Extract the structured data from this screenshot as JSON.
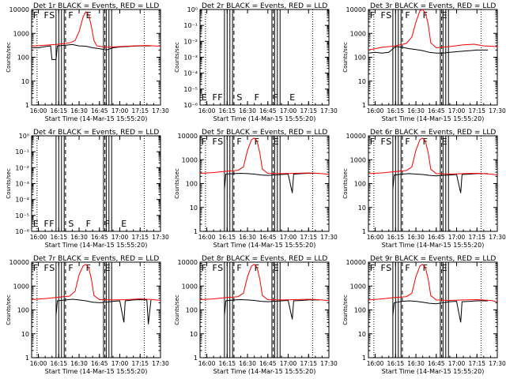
{
  "figure": {
    "background": "#ffffff",
    "axis_color": "#000000",
    "events_color": "#000000",
    "lld_color": "#ff0000"
  },
  "chart_data": [
    {
      "type": "line",
      "title": "Det 1r  BLACK = Events, RED = LLD",
      "xlabel": "Start Time (14-Mar-15 15:55:20)",
      "ylabel": "Counts/sec",
      "y_scale": "log",
      "ylim": [
        1,
        10000
      ],
      "y_ticks": [
        "1",
        "10",
        "100",
        "1000",
        "10000"
      ],
      "x_ticks": [
        "16:00",
        "16:15",
        "16:30",
        "16:45",
        "17:00",
        "17:15",
        "17:30"
      ],
      "markers": [
        "F",
        "F",
        "S",
        "F",
        "E"
      ],
      "events": [
        [
          0,
          250
        ],
        [
          5,
          250
        ],
        [
          10,
          280
        ],
        [
          14,
          300
        ],
        [
          15,
          80
        ],
        [
          18,
          80
        ],
        [
          19,
          300
        ],
        [
          25,
          320
        ],
        [
          30,
          340
        ],
        [
          35,
          300
        ],
        [
          40,
          290
        ],
        [
          45,
          250
        ],
        [
          50,
          230
        ],
        [
          55,
          200
        ],
        [
          60,
          250
        ],
        [
          65,
          270
        ],
        [
          70,
          280
        ],
        [
          75,
          290
        ],
        [
          80,
          300
        ],
        [
          85,
          300
        ],
        [
          88,
          300
        ]
      ],
      "lld": [
        [
          0,
          290
        ],
        [
          10,
          320
        ],
        [
          20,
          350
        ],
        [
          28,
          400
        ],
        [
          32,
          500
        ],
        [
          35,
          1200
        ],
        [
          38,
          5000
        ],
        [
          40,
          8000
        ],
        [
          42,
          6000
        ],
        [
          44,
          2000
        ],
        [
          46,
          500
        ],
        [
          48,
          300
        ],
        [
          55,
          260
        ],
        [
          65,
          280
        ],
        [
          75,
          300
        ],
        [
          85,
          310
        ],
        [
          95,
          290
        ]
      ]
    },
    {
      "type": "line",
      "title": "Det 2r  BLACK = Events, RED = LLD",
      "xlabel": "Start Time (14-Mar-15 15:55:20)",
      "ylabel": "Counts/sec",
      "y_scale": "log",
      "ylim": [
        1e-06,
        1
      ],
      "y_ticks": [
        "10⁻⁶",
        "10⁻⁵",
        "10⁻⁴",
        "10⁻³",
        "10⁻²",
        "10⁻¹",
        "10⁰"
      ],
      "x_ticks": [
        "16:00",
        "16:15",
        "16:30",
        "16:45",
        "17:00",
        "17:15",
        "17:30"
      ],
      "markers": [
        "E",
        "F",
        "F",
        "S",
        "F",
        "F",
        "E"
      ],
      "events": [],
      "lld": []
    },
    {
      "type": "line",
      "title": "Det 3r  BLACK = Events, RED = LLD",
      "xlabel": "Start Time (14-Mar-15 15:55:20)",
      "ylabel": "Counts/sec",
      "y_scale": "log",
      "ylim": [
        1,
        10000
      ],
      "y_ticks": [
        "1",
        "10",
        "100",
        "1000",
        "10000"
      ],
      "x_ticks": [
        "16:00",
        "16:15",
        "16:30",
        "16:45",
        "17:00",
        "17:15",
        "17:30"
      ],
      "markers": [
        "F",
        "F",
        "S",
        "F",
        "F",
        "E"
      ],
      "events": [
        [
          0,
          150
        ],
        [
          5,
          160
        ],
        [
          10,
          150
        ],
        [
          15,
          160
        ],
        [
          20,
          280
        ],
        [
          25,
          260
        ],
        [
          30,
          230
        ],
        [
          35,
          210
        ],
        [
          40,
          190
        ],
        [
          45,
          160
        ],
        [
          50,
          150
        ],
        [
          55,
          150
        ],
        [
          60,
          160
        ],
        [
          65,
          170
        ],
        [
          70,
          180
        ],
        [
          75,
          190
        ],
        [
          80,
          200
        ],
        [
          88,
          200
        ]
      ],
      "lld": [
        [
          0,
          200
        ],
        [
          10,
          260
        ],
        [
          20,
          300
        ],
        [
          28,
          380
        ],
        [
          32,
          700
        ],
        [
          35,
          3000
        ],
        [
          38,
          9000
        ],
        [
          40,
          10000
        ],
        [
          42,
          7000
        ],
        [
          44,
          2500
        ],
        [
          46,
          400
        ],
        [
          50,
          250
        ],
        [
          60,
          280
        ],
        [
          70,
          330
        ],
        [
          78,
          350
        ],
        [
          85,
          300
        ],
        [
          95,
          280
        ]
      ]
    },
    {
      "type": "line",
      "title": "Det 4r  BLACK = Events, RED = LLD",
      "xlabel": "Start Time (14-Mar-15 15:55:20)",
      "ylabel": "Counts/sec",
      "y_scale": "log",
      "ylim": [
        1e-06,
        1
      ],
      "y_ticks": [
        "10⁻⁶",
        "10⁻⁵",
        "10⁻⁴",
        "10⁻³",
        "10⁻²",
        "10⁻¹",
        "10⁰"
      ],
      "x_ticks": [
        "16:00",
        "16:15",
        "16:30",
        "16:45",
        "17:00",
        "17:15",
        "17:30"
      ],
      "markers": [
        "E",
        "F",
        "F",
        "S",
        "F",
        "F",
        "E"
      ],
      "events": [],
      "lld": []
    },
    {
      "type": "line",
      "title": "Det 5r  BLACK = Events, RED = LLD",
      "xlabel": "Start Time (14-Mar-15 15:55:20)",
      "ylabel": "Counts/sec",
      "y_scale": "log",
      "ylim": [
        1,
        10000
      ],
      "y_ticks": [
        "1",
        "10",
        "100",
        "1000",
        "10000"
      ],
      "x_ticks": [
        "16:00",
        "16:15",
        "16:30",
        "16:45",
        "17:00",
        "17:15",
        "17:30"
      ],
      "markers": [
        "F",
        "F",
        "S",
        "F",
        "F",
        "E"
      ],
      "events": [
        [
          18,
          60
        ],
        [
          19,
          250
        ],
        [
          25,
          260
        ],
        [
          30,
          270
        ],
        [
          35,
          260
        ],
        [
          40,
          250
        ],
        [
          45,
          230
        ],
        [
          50,
          220
        ],
        [
          55,
          230
        ],
        [
          60,
          240
        ],
        [
          65,
          250
        ],
        [
          68,
          40
        ],
        [
          69,
          250
        ],
        [
          75,
          260
        ],
        [
          80,
          270
        ],
        [
          88,
          270
        ]
      ],
      "lld": [
        [
          0,
          270
        ],
        [
          10,
          290
        ],
        [
          20,
          330
        ],
        [
          28,
          360
        ],
        [
          32,
          500
        ],
        [
          35,
          2500
        ],
        [
          38,
          7000
        ],
        [
          40,
          8000
        ],
        [
          42,
          6000
        ],
        [
          44,
          2000
        ],
        [
          46,
          400
        ],
        [
          50,
          270
        ],
        [
          60,
          260
        ],
        [
          70,
          270
        ],
        [
          80,
          280
        ],
        [
          90,
          260
        ],
        [
          95,
          240
        ]
      ]
    },
    {
      "type": "line",
      "title": "Det 6r  BLACK = Events, RED = LLD",
      "xlabel": "Start Time (14-Mar-15 15:55:20)",
      "ylabel": "Counts/sec",
      "y_scale": "log",
      "ylim": [
        1,
        10000
      ],
      "y_ticks": [
        "1",
        "10",
        "100",
        "1000",
        "10000"
      ],
      "x_ticks": [
        "16:00",
        "16:15",
        "16:30",
        "16:45",
        "17:00",
        "17:15",
        "17:30"
      ],
      "markers": [
        "F",
        "F",
        "S",
        "F",
        "F",
        "E"
      ],
      "events": [
        [
          18,
          60
        ],
        [
          19,
          230
        ],
        [
          25,
          250
        ],
        [
          30,
          260
        ],
        [
          35,
          250
        ],
        [
          40,
          240
        ],
        [
          45,
          220
        ],
        [
          50,
          210
        ],
        [
          55,
          220
        ],
        [
          60,
          230
        ],
        [
          65,
          240
        ],
        [
          68,
          40
        ],
        [
          69,
          240
        ],
        [
          75,
          250
        ],
        [
          80,
          260
        ],
        [
          88,
          260
        ]
      ],
      "lld": [
        [
          0,
          260
        ],
        [
          10,
          280
        ],
        [
          20,
          320
        ],
        [
          28,
          350
        ],
        [
          32,
          500
        ],
        [
          35,
          2500
        ],
        [
          38,
          7000
        ],
        [
          40,
          8000
        ],
        [
          42,
          6000
        ],
        [
          44,
          2000
        ],
        [
          46,
          400
        ],
        [
          50,
          260
        ],
        [
          60,
          250
        ],
        [
          70,
          260
        ],
        [
          80,
          270
        ],
        [
          90,
          250
        ],
        [
          95,
          230
        ]
      ]
    },
    {
      "type": "line",
      "title": "Det 7r  BLACK = Events, RED = LLD",
      "xlabel": "Start Time (14-Mar-15 15:55:20)",
      "ylabel": "Counts/sec",
      "y_scale": "log",
      "ylim": [
        1,
        10000
      ],
      "y_ticks": [
        "1",
        "10",
        "100",
        "1000",
        "10000"
      ],
      "x_ticks": [
        "16:00",
        "16:15",
        "16:30",
        "16:45",
        "17:00",
        "17:15",
        "17:30"
      ],
      "markers": [
        "F",
        "F",
        "S",
        "F",
        "F",
        "E"
      ],
      "events": [
        [
          18,
          60
        ],
        [
          19,
          240
        ],
        [
          25,
          260
        ],
        [
          30,
          280
        ],
        [
          35,
          260
        ],
        [
          40,
          240
        ],
        [
          45,
          210
        ],
        [
          50,
          200
        ],
        [
          55,
          210
        ],
        [
          60,
          230
        ],
        [
          65,
          240
        ],
        [
          68,
          30
        ],
        [
          69,
          240
        ],
        [
          75,
          260
        ],
        [
          80,
          270
        ],
        [
          85,
          260
        ],
        [
          86,
          25
        ],
        [
          88,
          260
        ]
      ],
      "lld": [
        [
          0,
          270
        ],
        [
          10,
          300
        ],
        [
          20,
          340
        ],
        [
          28,
          380
        ],
        [
          32,
          600
        ],
        [
          35,
          3000
        ],
        [
          38,
          7000
        ],
        [
          40,
          8000
        ],
        [
          42,
          6000
        ],
        [
          44,
          2000
        ],
        [
          46,
          400
        ],
        [
          50,
          270
        ],
        [
          60,
          260
        ],
        [
          70,
          270
        ],
        [
          80,
          290
        ],
        [
          90,
          270
        ],
        [
          95,
          250
        ]
      ]
    },
    {
      "type": "line",
      "title": "Det 8r  BLACK = Events, RED = LLD",
      "xlabel": "Start Time (14-Mar-15 15:55:20)",
      "ylabel": "Counts/sec",
      "y_scale": "log",
      "ylim": [
        1,
        10000
      ],
      "y_ticks": [
        "1",
        "10",
        "100",
        "1000",
        "10000"
      ],
      "x_ticks": [
        "16:00",
        "16:15",
        "16:30",
        "16:45",
        "17:00",
        "17:15",
        "17:30"
      ],
      "markers": [
        "F",
        "F",
        "S",
        "F",
        "F",
        "E"
      ],
      "events": [
        [
          18,
          60
        ],
        [
          19,
          240
        ],
        [
          25,
          260
        ],
        [
          30,
          270
        ],
        [
          35,
          260
        ],
        [
          40,
          250
        ],
        [
          45,
          230
        ],
        [
          50,
          220
        ],
        [
          55,
          230
        ],
        [
          60,
          240
        ],
        [
          65,
          250
        ],
        [
          68,
          40
        ],
        [
          69,
          240
        ],
        [
          75,
          250
        ],
        [
          80,
          260
        ],
        [
          88,
          260
        ]
      ],
      "lld": [
        [
          0,
          270
        ],
        [
          10,
          290
        ],
        [
          20,
          330
        ],
        [
          28,
          360
        ],
        [
          32,
          500
        ],
        [
          35,
          2500
        ],
        [
          38,
          7000
        ],
        [
          40,
          8000
        ],
        [
          42,
          6000
        ],
        [
          44,
          2000
        ],
        [
          46,
          400
        ],
        [
          50,
          270
        ],
        [
          60,
          260
        ],
        [
          70,
          270
        ],
        [
          80,
          280
        ],
        [
          90,
          260
        ],
        [
          95,
          240
        ]
      ]
    },
    {
      "type": "line",
      "title": "Det 9r  BLACK = Events, RED = LLD",
      "xlabel": "Start Time (14-Mar-15 15:55:20)",
      "ylabel": "Counts/sec",
      "y_scale": "log",
      "ylim": [
        1,
        10000
      ],
      "y_ticks": [
        "1",
        "10",
        "100",
        "1000",
        "10000"
      ],
      "x_ticks": [
        "16:00",
        "16:15",
        "16:30",
        "16:45",
        "17:00",
        "17:15",
        "17:30"
      ],
      "markers": [
        "F",
        "F",
        "S",
        "F",
        "F",
        "E"
      ],
      "events": [
        [
          18,
          60
        ],
        [
          19,
          200
        ],
        [
          25,
          230
        ],
        [
          30,
          240
        ],
        [
          35,
          230
        ],
        [
          40,
          210
        ],
        [
          45,
          190
        ],
        [
          50,
          180
        ],
        [
          55,
          200
        ],
        [
          60,
          220
        ],
        [
          65,
          230
        ],
        [
          68,
          30
        ],
        [
          69,
          220
        ],
        [
          75,
          230
        ],
        [
          80,
          240
        ],
        [
          88,
          240
        ]
      ],
      "lld": [
        [
          0,
          260
        ],
        [
          10,
          290
        ],
        [
          20,
          330
        ],
        [
          28,
          360
        ],
        [
          32,
          500
        ],
        [
          35,
          2500
        ],
        [
          38,
          7000
        ],
        [
          40,
          8000
        ],
        [
          42,
          6000
        ],
        [
          44,
          2000
        ],
        [
          46,
          400
        ],
        [
          50,
          260
        ],
        [
          60,
          250
        ],
        [
          70,
          260
        ],
        [
          80,
          270
        ],
        [
          90,
          250
        ],
        [
          95,
          220
        ]
      ]
    }
  ]
}
